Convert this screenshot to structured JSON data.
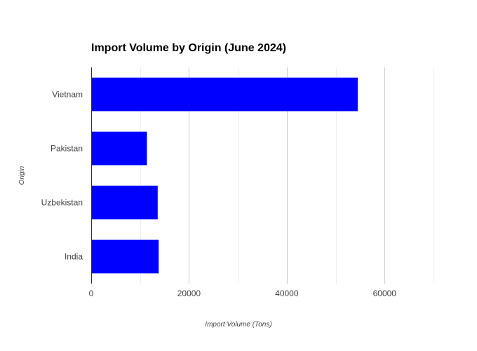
{
  "chart_data": {
    "type": "bar",
    "orientation": "horizontal",
    "title": "Import Volume by Origin (June 2024)",
    "xlabel": "Import Volume (Tons)",
    "ylabel": "Origin",
    "categories": [
      "Vietnam",
      "Pakistan",
      "Uzbekistan",
      "India"
    ],
    "values": [
      54500,
      11400,
      13600,
      13800
    ],
    "xlim": [
      0,
      70000
    ],
    "xticks": [
      0,
      20000,
      40000,
      60000
    ],
    "xtick_labels": [
      "0",
      "20000",
      "40000",
      "60000"
    ],
    "grid": true,
    "legend": "none",
    "bar_color": "#0000ff"
  }
}
